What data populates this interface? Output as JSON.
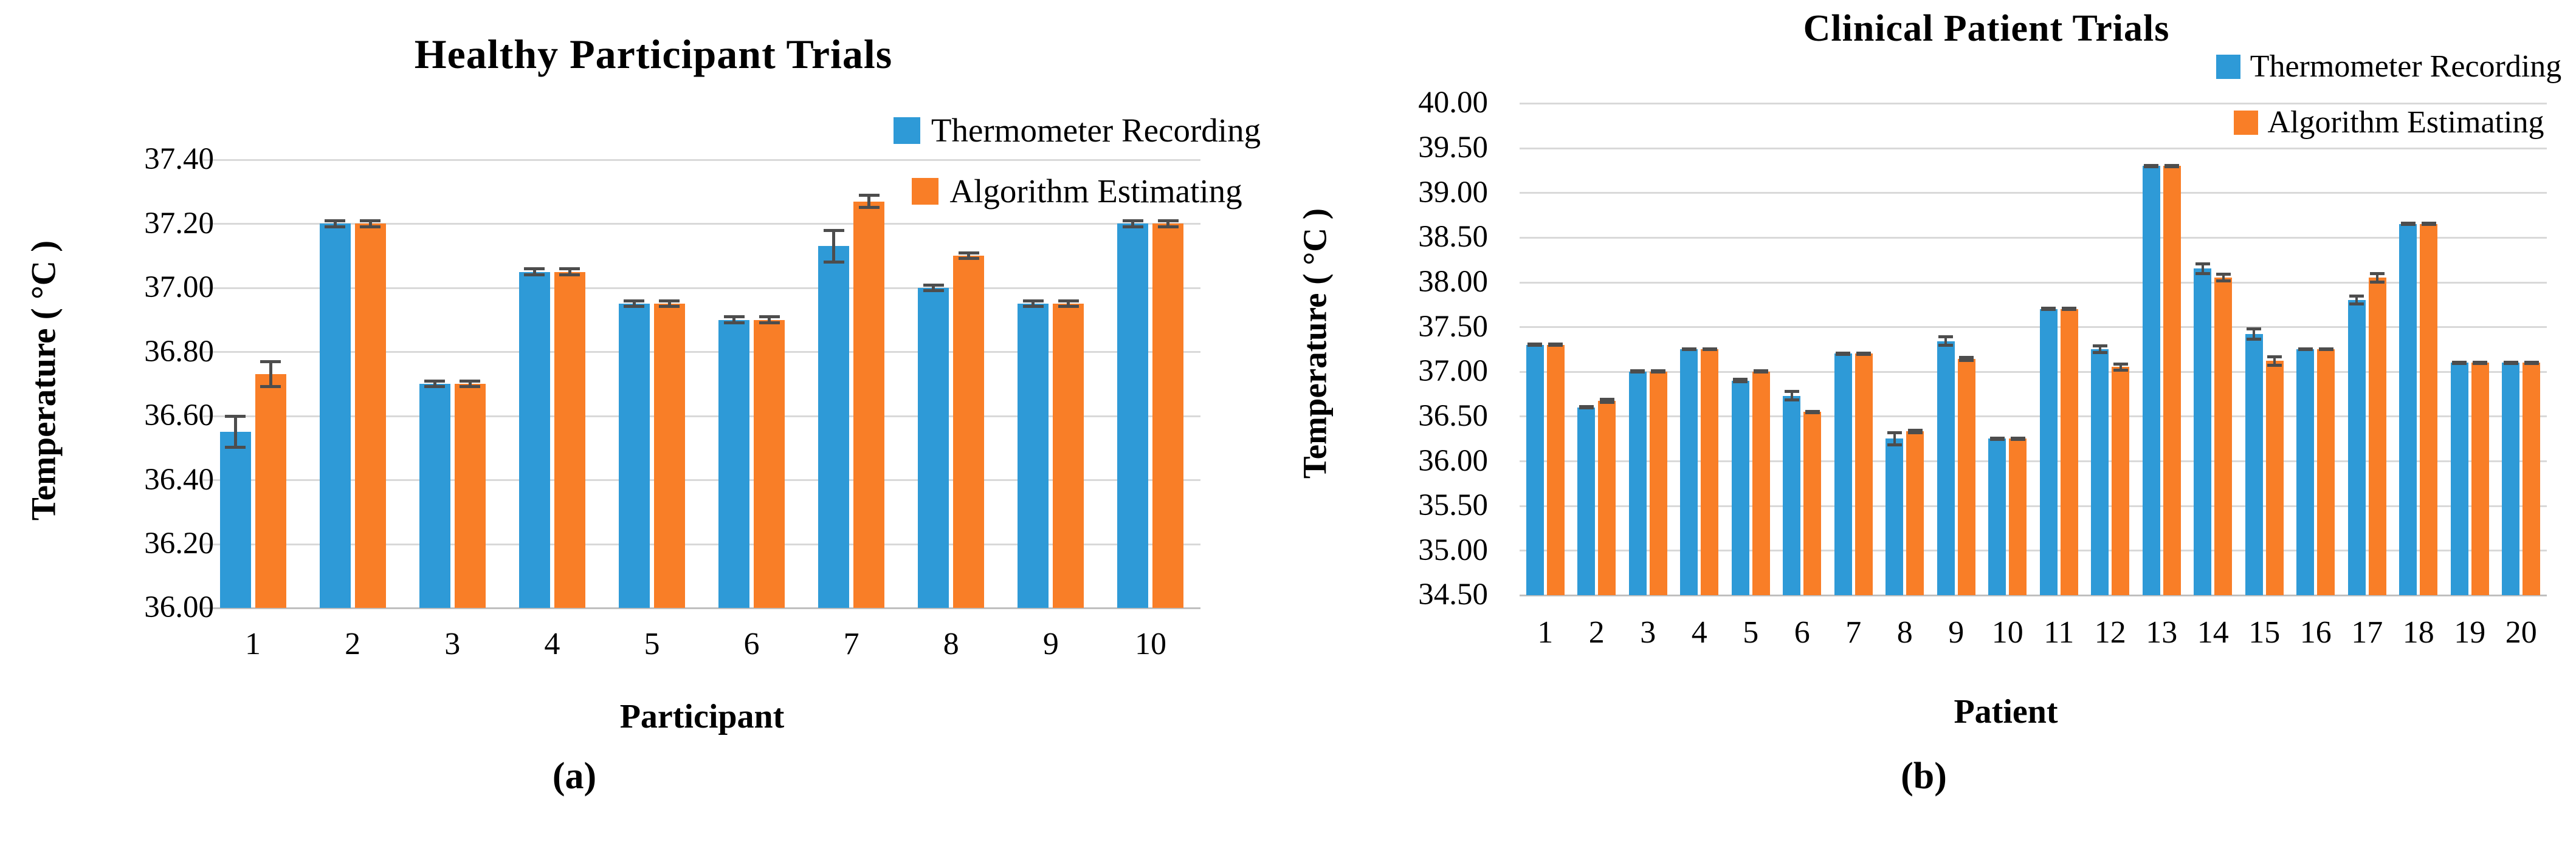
{
  "figure": {
    "captions": [
      "(a)",
      "(b)"
    ]
  },
  "colors": {
    "thermometer_blue": "#2E9AD7",
    "algorithm_orange": "#F97E27",
    "gridline": "#D9D9D9",
    "axis_line": "#BFBFBF",
    "error_bar": "#4D4D4D",
    "text": "#000000",
    "background": "#FFFFFF"
  },
  "chart_data": [
    {
      "id": "healthy",
      "type": "bar",
      "title": "Healthy Participant Trials",
      "xlabel": "Participant",
      "ylabel": "Temperature ( °C )",
      "ylim": [
        36.0,
        37.4
      ],
      "ytick_step": 0.2,
      "ytick_labels": [
        "36.00",
        "36.20",
        "36.40",
        "36.60",
        "36.80",
        "37.00",
        "37.20",
        "37.40"
      ],
      "grid": true,
      "legend_position": "top-right-inside",
      "categories": [
        "1",
        "2",
        "3",
        "4",
        "5",
        "6",
        "7",
        "8",
        "9",
        "10"
      ],
      "series": [
        {
          "name": "Thermometer Recording",
          "color": "#2E9AD7",
          "values": [
            36.55,
            37.2,
            36.7,
            37.05,
            36.95,
            36.9,
            37.13,
            37.0,
            36.95,
            37.2
          ],
          "errors": [
            0.05,
            0.01,
            0.01,
            0.01,
            0.01,
            0.01,
            0.05,
            0.01,
            0.01,
            0.01
          ]
        },
        {
          "name": "Algorithm Estimating",
          "color": "#F97E27",
          "values": [
            36.73,
            37.2,
            36.7,
            37.05,
            36.95,
            36.9,
            37.27,
            37.1,
            36.95,
            37.2
          ],
          "errors": [
            0.04,
            0.01,
            0.01,
            0.01,
            0.01,
            0.01,
            0.02,
            0.01,
            0.01,
            0.01
          ]
        }
      ]
    },
    {
      "id": "clinical",
      "type": "bar",
      "title": "Clinical Patient Trials",
      "xlabel": "Patient",
      "ylabel": "Temperature ( °C )",
      "ylim": [
        34.5,
        40.0
      ],
      "ytick_step": 0.5,
      "ytick_labels": [
        "34.50",
        "35.00",
        "35.50",
        "36.00",
        "36.50",
        "37.00",
        "37.50",
        "38.00",
        "38.50",
        "39.00",
        "39.50",
        "40.00"
      ],
      "grid": true,
      "legend_position": "top-right-inside",
      "categories": [
        "1",
        "2",
        "3",
        "4",
        "5",
        "6",
        "7",
        "8",
        "9",
        "10",
        "11",
        "12",
        "13",
        "14",
        "15",
        "16",
        "17",
        "18",
        "19",
        "20"
      ],
      "series": [
        {
          "name": "Thermometer Recording",
          "color": "#2E9AD7",
          "values": [
            37.3,
            36.6,
            37.0,
            37.25,
            36.9,
            36.73,
            37.2,
            36.25,
            37.34,
            36.25,
            37.7,
            37.25,
            39.3,
            38.15,
            37.42,
            37.25,
            37.8,
            38.65,
            37.1,
            37.1
          ],
          "errors": [
            0.01,
            0.01,
            0.01,
            0.01,
            0.02,
            0.05,
            0.01,
            0.07,
            0.05,
            0.01,
            0.01,
            0.04,
            0.01,
            0.06,
            0.06,
            0.01,
            0.05,
            0.01,
            0.01,
            0.01
          ]
        },
        {
          "name": "Algorithm Estimating",
          "color": "#F97E27",
          "values": [
            37.3,
            36.67,
            37.0,
            37.25,
            37.0,
            36.55,
            37.2,
            36.33,
            37.14,
            36.25,
            37.7,
            37.05,
            39.3,
            38.05,
            37.12,
            37.25,
            38.05,
            38.65,
            37.1,
            37.1
          ],
          "errors": [
            0.01,
            0.02,
            0.01,
            0.01,
            0.01,
            0.01,
            0.01,
            0.02,
            0.02,
            0.01,
            0.01,
            0.04,
            0.01,
            0.04,
            0.05,
            0.01,
            0.05,
            0.01,
            0.01,
            0.01
          ]
        }
      ]
    }
  ]
}
